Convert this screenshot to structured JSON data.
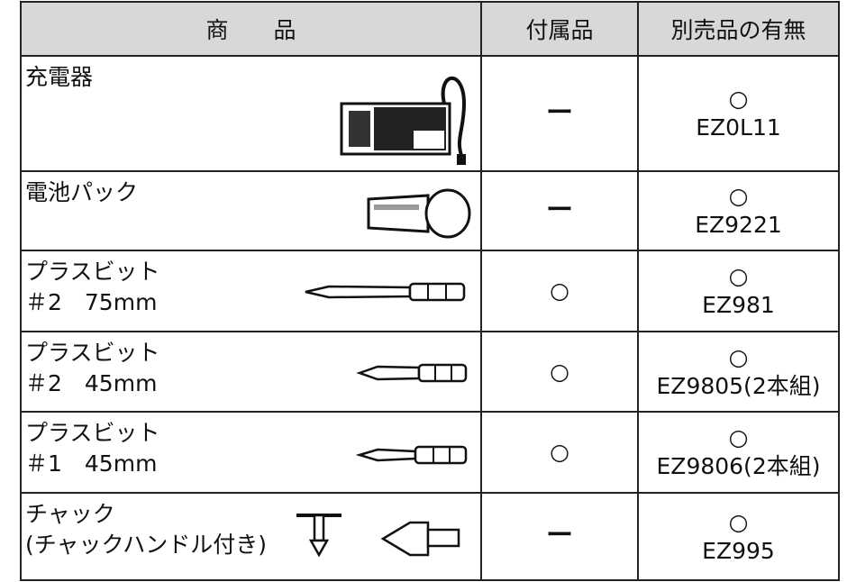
{
  "table": {
    "header": [
      "商　　品",
      "付属品",
      "別売品の有無"
    ],
    "rows": [
      {
        "product": [
          "充電器"
        ],
        "included": "ー",
        "optional_mark": "○",
        "optional_model": "EZ0L11"
      },
      {
        "product": [
          "電池パック"
        ],
        "included": "ー",
        "optional_mark": "○",
        "optional_model": "EZ9221"
      },
      {
        "product": [
          "プラスビット",
          "＃2　75mm"
        ],
        "included": "○",
        "optional_mark": "○",
        "optional_model": "EZ981"
      },
      {
        "product": [
          "プラスビット",
          "＃2　45mm"
        ],
        "included": "○",
        "optional_mark": "○",
        "optional_model": "EZ9805(2本組)"
      },
      {
        "product": [
          "プラスビット",
          "＃1　45mm"
        ],
        "included": "○",
        "optional_mark": "○",
        "optional_model": "EZ9806(2本組)"
      },
      {
        "product": [
          "チャック",
          "(チャックハンドル付き)"
        ],
        "included": "ー",
        "optional_mark": "○",
        "optional_model": "EZ995"
      }
    ]
  }
}
